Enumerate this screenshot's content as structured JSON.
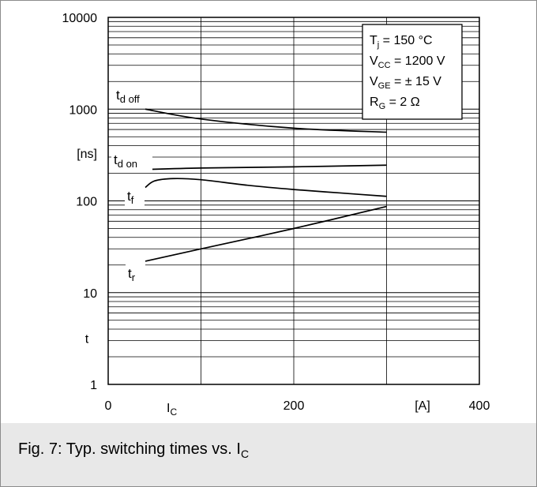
{
  "caption": {
    "text": "Fig. 7: Typ. switching times vs. I",
    "sub": "C"
  },
  "colors": {
    "grid": "#000000",
    "curve": "#000000",
    "caption_bg": "#e8e8e8"
  },
  "chart_data": {
    "type": "line",
    "x_scale": "linear",
    "y_scale": "log",
    "xlim": [
      0,
      400
    ],
    "ylim": [
      1,
      10000
    ],
    "x_ticks": [
      "0",
      "200",
      "400"
    ],
    "y_ticks": [
      "1",
      "10",
      "100",
      "1000",
      "10000"
    ],
    "x_label": {
      "main": "I",
      "sub": "C"
    },
    "x_unit": "[A]",
    "y_label": "t",
    "y_unit": "[ns]",
    "grid": true,
    "conditions": [
      {
        "main": "T",
        "sub": "j",
        "rest": "   = 150 °C"
      },
      {
        "main": "V",
        "sub": "CC",
        "rest": " = 1200 V"
      },
      {
        "main": "V",
        "sub": "GE",
        "rest": " = ± 15 V"
      },
      {
        "main": "R",
        "sub": "G",
        "rest": "  = 2 Ω"
      }
    ],
    "series": [
      {
        "name": "t d off",
        "label_main": "t",
        "label_sub": "d off",
        "x": [
          40,
          100,
          200,
          300
        ],
        "y": [
          1000,
          780,
          620,
          560
        ]
      },
      {
        "name": "t d on",
        "label_main": "t",
        "label_sub": "d on",
        "x": [
          40,
          100,
          200,
          300
        ],
        "y": [
          220,
          228,
          235,
          245
        ]
      },
      {
        "name": "t f",
        "label_main": "t",
        "label_sub": "f",
        "x": [
          40,
          50,
          70,
          100,
          150,
          200,
          250,
          300
        ],
        "y": [
          140,
          165,
          175,
          170,
          148,
          133,
          122,
          112
        ]
      },
      {
        "name": "t r",
        "label_main": "t",
        "label_sub": "r",
        "x": [
          40,
          100,
          200,
          300
        ],
        "y": [
          22,
          30,
          50,
          87
        ]
      }
    ]
  }
}
